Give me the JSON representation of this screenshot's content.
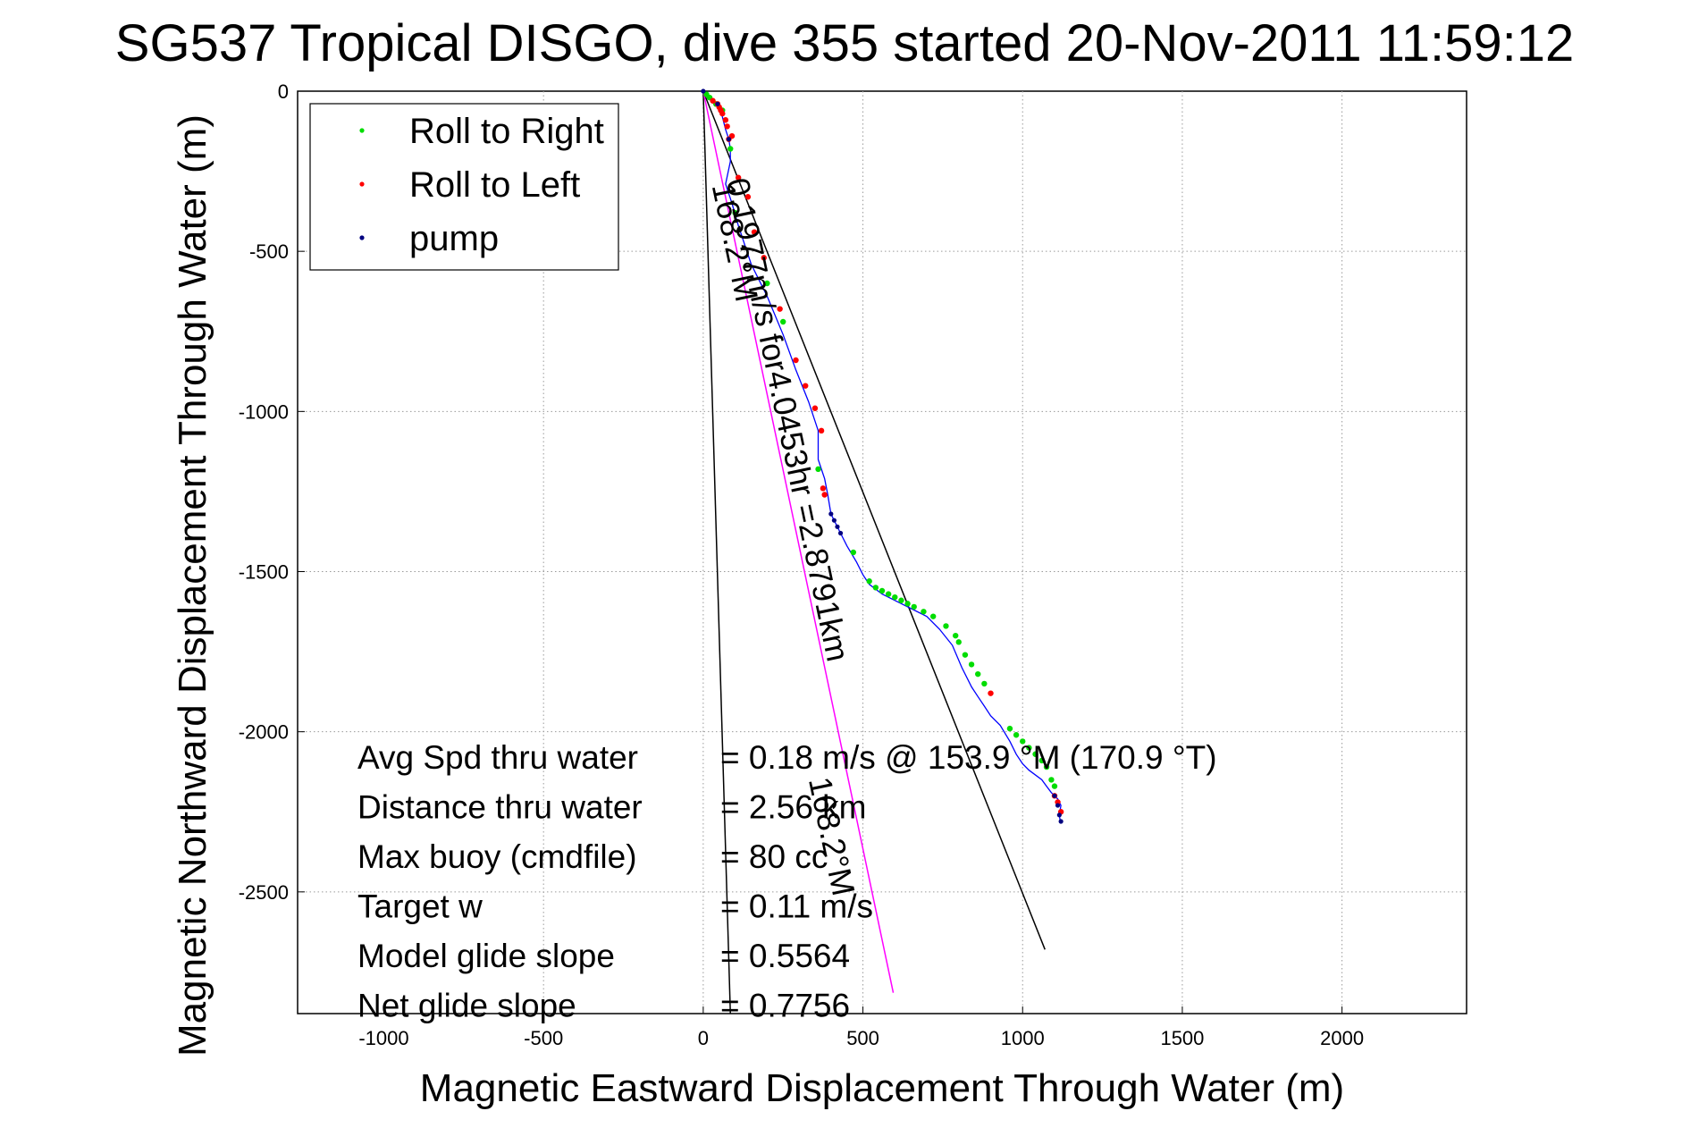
{
  "chart_data": {
    "type": "line",
    "title": "SG537 Tropical DISGO, dive 355 started 20-Nov-2011 11:59:12",
    "xlabel": "Magnetic Eastward Displacement Through Water (m)",
    "ylabel": "Magnetic Northward Displacement Through Water (m)",
    "xlim": [
      -1270,
      2390
    ],
    "ylim": [
      -2880,
      0
    ],
    "xticks": [
      -1000,
      -500,
      0,
      500,
      1000,
      1500,
      2000
    ],
    "xtick_labels": [
      "-1000",
      "-500",
      "0",
      "500",
      "1000",
      "1500",
      "2000"
    ],
    "yticks": [
      0,
      -500,
      -1000,
      -1500,
      -2000,
      -2500
    ],
    "ytick_labels": [
      "0",
      "-500",
      "-1000",
      "-1500",
      "-2000",
      "-2500"
    ],
    "grid": true,
    "legend": {
      "placement": "top-left",
      "entries": [
        {
          "label": "Roll to Right",
          "color": "#00dd00"
        },
        {
          "label": "Roll to Left",
          "color": "#ff0000"
        },
        {
          "label": "pump",
          "color": "#000080"
        }
      ]
    },
    "track": {
      "color": "#0000ff",
      "x": [
        0,
        20,
        40,
        55,
        60,
        70,
        80,
        85,
        85,
        70,
        90,
        110,
        150,
        200,
        250,
        290,
        330,
        360,
        360,
        380,
        390,
        400,
        430,
        450,
        480,
        500,
        520,
        560,
        620,
        700,
        740,
        780,
        810,
        840,
        860,
        880,
        900,
        930,
        960,
        980,
        1000,
        1020,
        1060,
        1075,
        1090,
        1100,
        1110,
        1120,
        1115,
        1118
      ],
      "y": [
        0,
        -20,
        -40,
        -60,
        -80,
        -120,
        -150,
        -180,
        -220,
        -290,
        -350,
        -420,
        -540,
        -640,
        -760,
        -870,
        -970,
        -1060,
        -1150,
        -1210,
        -1260,
        -1320,
        -1380,
        -1420,
        -1470,
        -1510,
        -1540,
        -1570,
        -1600,
        -1640,
        -1680,
        -1730,
        -1800,
        -1860,
        -1890,
        -1920,
        -1950,
        -1980,
        -2030,
        -2070,
        -2100,
        -2120,
        -2150,
        -2170,
        -2190,
        -2200,
        -2210,
        -2230,
        -2260,
        -2280
      ]
    },
    "roll_right": {
      "color": "#00dd00",
      "x": [
        10,
        20,
        40,
        60,
        85,
        100,
        200,
        250,
        360,
        470,
        520,
        540,
        560,
        580,
        600,
        620,
        640,
        660,
        690,
        720,
        760,
        790,
        800,
        820,
        840,
        860,
        880,
        960,
        980,
        1000,
        1020,
        1040,
        1060,
        1075,
        1090,
        1100
      ],
      "y": [
        -10,
        -20,
        -40,
        -60,
        -180,
        -380,
        -600,
        -720,
        -1180,
        -1440,
        -1530,
        -1550,
        -1560,
        -1570,
        -1580,
        -1590,
        -1600,
        -1610,
        -1625,
        -1640,
        -1670,
        -1700,
        -1720,
        -1760,
        -1790,
        -1820,
        -1850,
        -1990,
        -2010,
        -2030,
        -2050,
        -2070,
        -2090,
        -2110,
        -2150,
        -2170
      ]
    },
    "roll_left": {
      "color": "#ff0000",
      "x": [
        30,
        45,
        50,
        55,
        60,
        70,
        75,
        80,
        90,
        110,
        140,
        160,
        190,
        240,
        290,
        320,
        350,
        370,
        375,
        380,
        900,
        1100,
        1110,
        1120
      ],
      "y": [
        -30,
        -40,
        -50,
        -60,
        -70,
        -90,
        -110,
        -150,
        -140,
        -270,
        -330,
        -440,
        -520,
        -680,
        -840,
        -920,
        -990,
        -1060,
        -1240,
        -1260,
        -1880,
        -2200,
        -2220,
        -2250
      ]
    },
    "pump": {
      "color": "#000080",
      "x": [
        0,
        45,
        80,
        400,
        410,
        420,
        430,
        1100,
        1110,
        1115,
        1120
      ],
      "y": [
        0,
        -40,
        -150,
        -1320,
        -1340,
        -1360,
        -1380,
        -2200,
        -2230,
        -2260,
        -2280
      ]
    },
    "reference_lines": [
      {
        "name": "",
        "color": "#000000",
        "x": [
          0,
          85
        ],
        "y": [
          0,
          -2880
        ]
      },
      {
        "name": "",
        "color": "#000000",
        "x": [
          0,
          1070
        ],
        "y": [
          0,
          -2680
        ]
      },
      {
        "name": "",
        "color": "#ff00ff",
        "x": [
          0,
          595
        ],
        "y": [
          0,
          -2815
        ]
      }
    ],
    "annotations": [
      {
        "text": "0.1977m/s for4.0453hr =2.8791km",
        "x": 72,
        "y": -280
      },
      {
        "text": "168.2°M",
        "x": 27,
        "y": -295
      },
      {
        "text": "168.2°M",
        "x": 330,
        "y": -2150
      }
    ],
    "stats": [
      {
        "label": "Avg Spd thru water",
        "value": "=  0.18 m/s @ 153.9 °M (170.9 °T)"
      },
      {
        "label": "Distance thru water",
        "value": "=  2.56 km"
      },
      {
        "label": "Max buoy (cmdfile)",
        "value": "= 80 cc"
      },
      {
        "label": "Target w",
        "value": "= 0.11 m/s"
      },
      {
        "label": "Model glide slope",
        "value": "= 0.5564"
      },
      {
        "label": "Net glide slope",
        "value": "= 0.7756"
      }
    ]
  }
}
